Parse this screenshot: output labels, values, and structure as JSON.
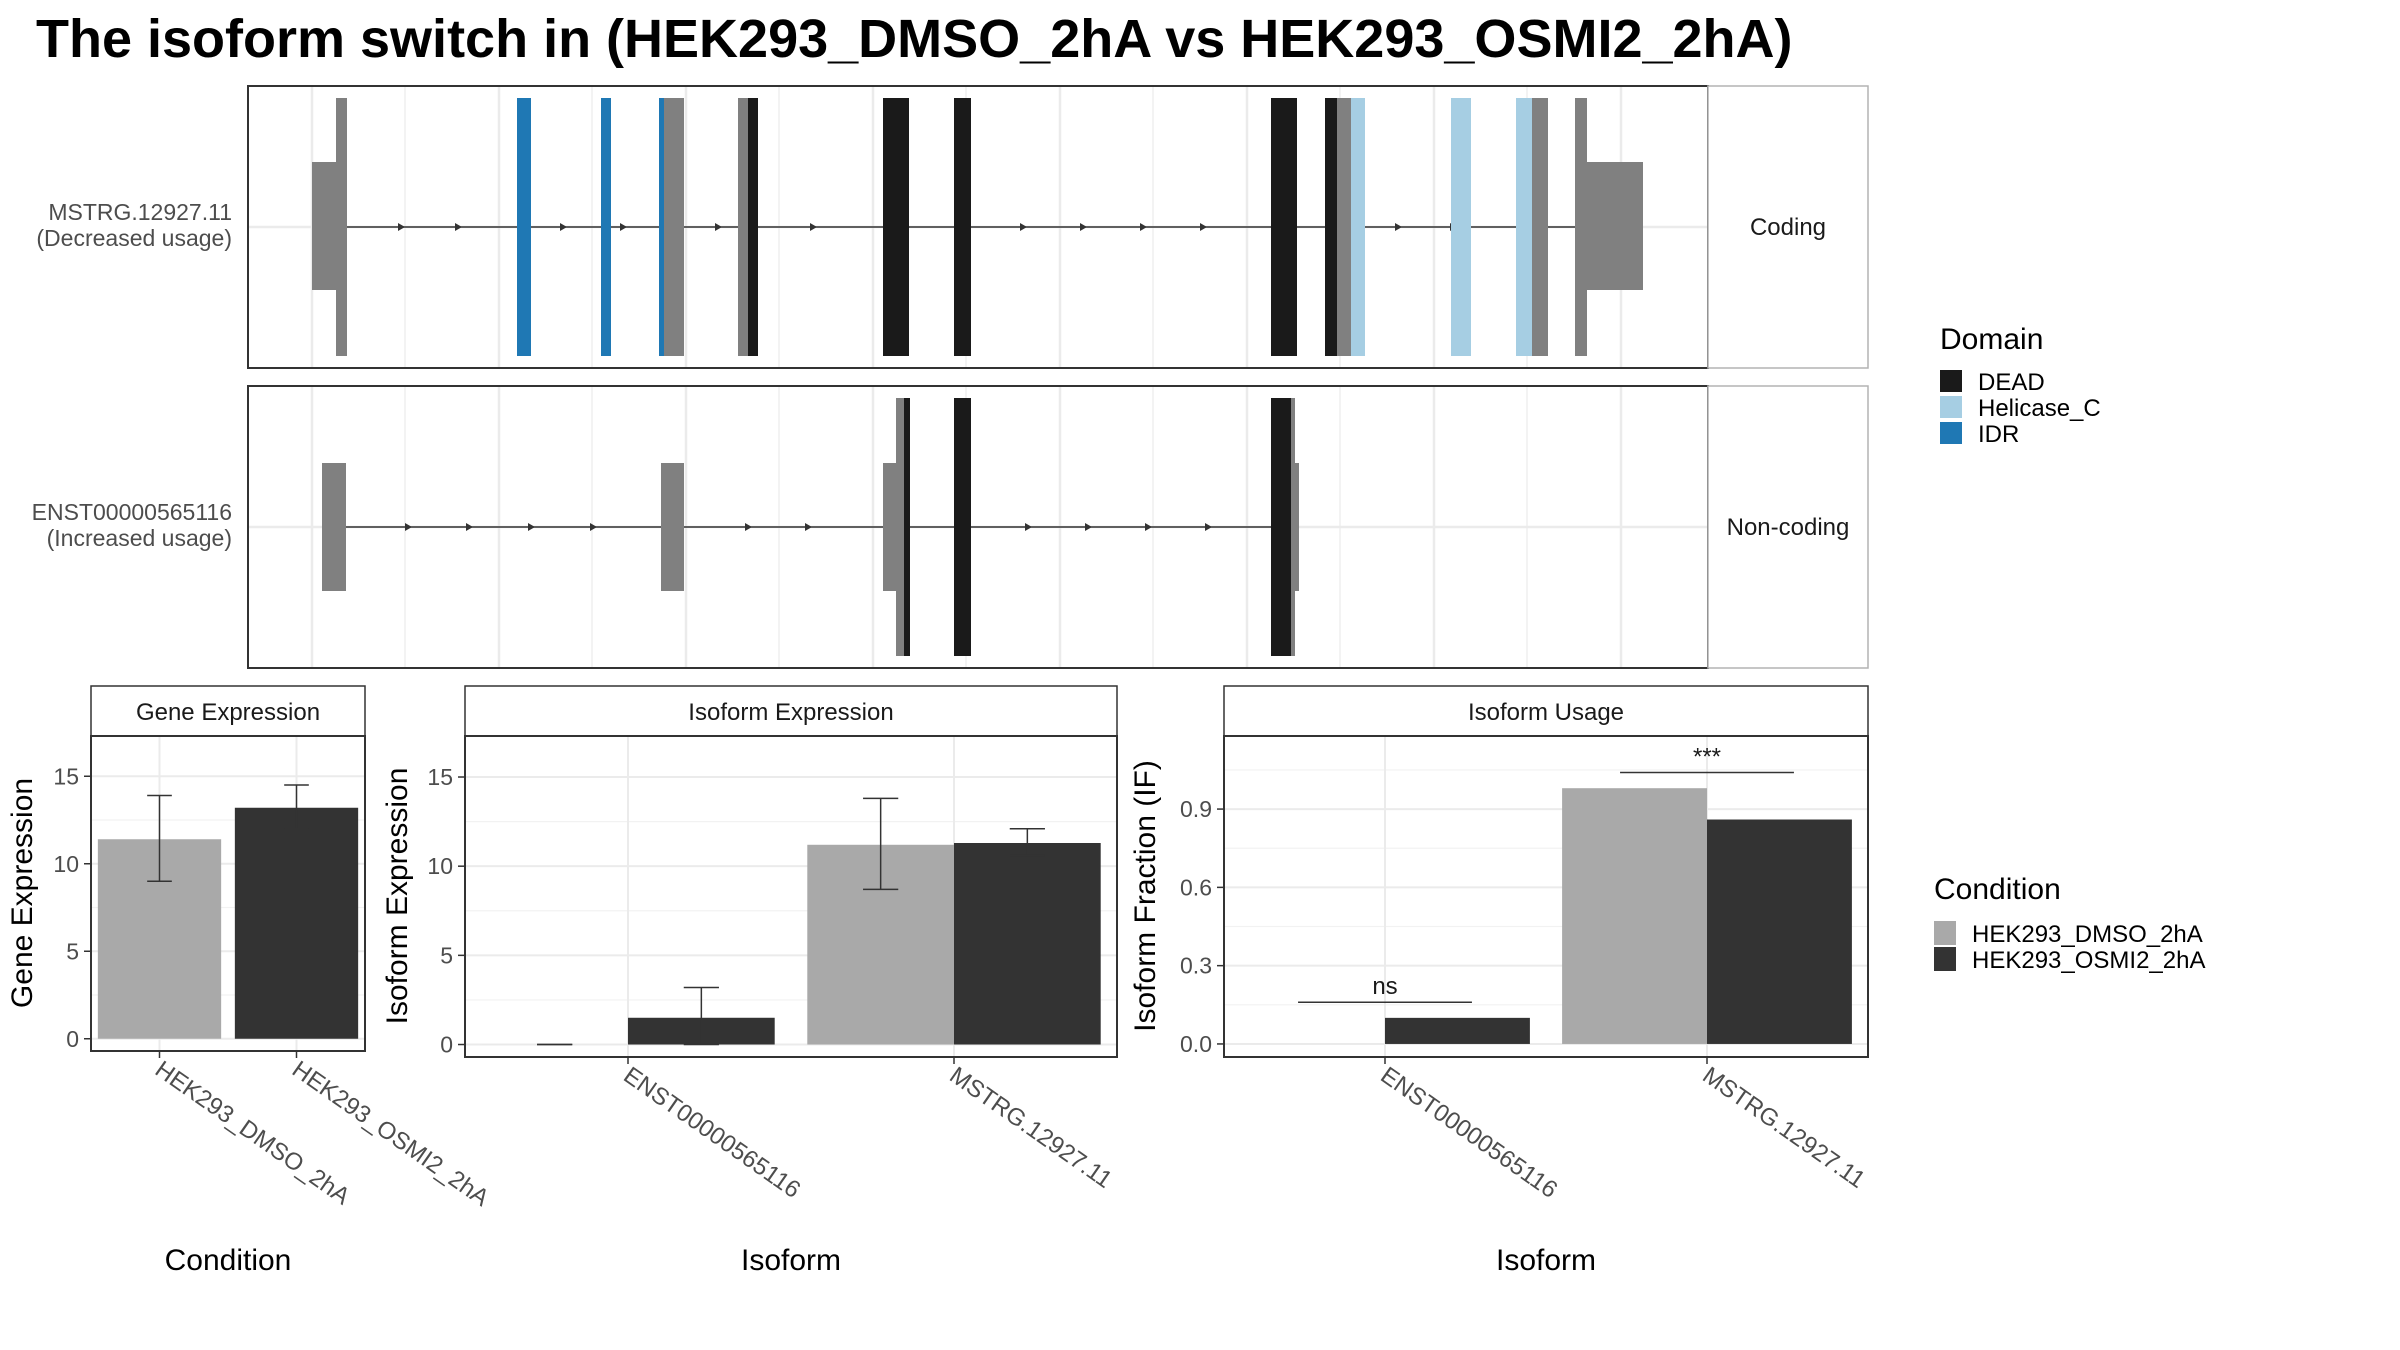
{
  "title": "The isoform switch in  (HEK293_DMSO_2hA vs HEK293_OSMI2_2hA)",
  "structure": {
    "transcripts": [
      {
        "name": "MSTRG.12927.11",
        "usage": "(Decreased usage)",
        "category": "Coding"
      },
      {
        "name": "ENST00000565116",
        "usage": "(Increased usage)",
        "category": "Non-coding"
      }
    ]
  },
  "legends": {
    "domain": {
      "title": "Domain",
      "items": [
        {
          "label": "DEAD",
          "color": "#1a1a1a"
        },
        {
          "label": "Helicase_C",
          "color": "#a6cee3"
        },
        {
          "label": "IDR",
          "color": "#1f78b4"
        }
      ]
    },
    "condition": {
      "title": "Condition",
      "items": [
        {
          "label": "HEK293_DMSO_2hA",
          "color": "#a9a9a9"
        },
        {
          "label": "HEK293_OSMI2_2hA",
          "color": "#333333"
        }
      ]
    }
  },
  "panels": {
    "gene": {
      "strip": "Gene Expression",
      "ylabel": "Gene Expression",
      "xlabel": "Condition"
    },
    "isoform": {
      "strip": "Isoform Expression",
      "ylabel": "Isoform Expression",
      "xlabel": "Isoform"
    },
    "usage": {
      "strip": "Isoform Usage",
      "ylabel": "Isoform Fraction (IF)",
      "xlabel": "Isoform"
    }
  },
  "chart_data": [
    {
      "type": "bar",
      "panel": "Gene Expression",
      "categories": [
        "HEK293_DMSO_2hA",
        "HEK293_OSMI2_2hA"
      ],
      "values": [
        11.4,
        13.2
      ],
      "errors": [
        [
          9.0,
          13.9
        ],
        [
          12.0,
          14.5
        ]
      ],
      "ylim": [
        -0.7,
        17.3
      ],
      "yticks": [
        0,
        5,
        10,
        15
      ],
      "xlabel": "Condition",
      "ylabel": "Gene Expression",
      "grid": true
    },
    {
      "type": "bar",
      "panel": "Isoform Expression",
      "categories": [
        "ENST00000565116",
        "MSTRG.12927.11"
      ],
      "series": [
        {
          "name": "HEK293_DMSO_2hA",
          "values": [
            0.0,
            11.2
          ],
          "errors": [
            [
              0.0,
              0.0
            ],
            [
              8.7,
              13.8
            ]
          ]
        },
        {
          "name": "HEK293_OSMI2_2hA",
          "values": [
            1.5,
            11.3
          ],
          "errors": [
            [
              0.0,
              3.2
            ],
            [
              10.6,
              12.1
            ]
          ]
        }
      ],
      "ylim": [
        -0.7,
        17.3
      ],
      "yticks": [
        0,
        5,
        10,
        15
      ],
      "xlabel": "Isoform",
      "ylabel": "Isoform Expression",
      "grid": true
    },
    {
      "type": "bar",
      "panel": "Isoform Usage",
      "categories": [
        "ENST00000565116",
        "MSTRG.12927.11"
      ],
      "series": [
        {
          "name": "HEK293_DMSO_2hA",
          "values": [
            0.0,
            0.98
          ]
        },
        {
          "name": "HEK293_OSMI2_2hA",
          "values": [
            0.1,
            0.86
          ]
        }
      ],
      "significance": [
        "ns",
        "***"
      ],
      "ylim": [
        -0.05,
        1.18
      ],
      "yticks": [
        0.0,
        0.3,
        0.6,
        0.9
      ],
      "yticklabels": [
        "0.0",
        "0.3",
        "0.6",
        "0.9"
      ],
      "xlabel": "Isoform",
      "ylabel": "Isoform Fraction (IF)",
      "grid": true
    }
  ]
}
